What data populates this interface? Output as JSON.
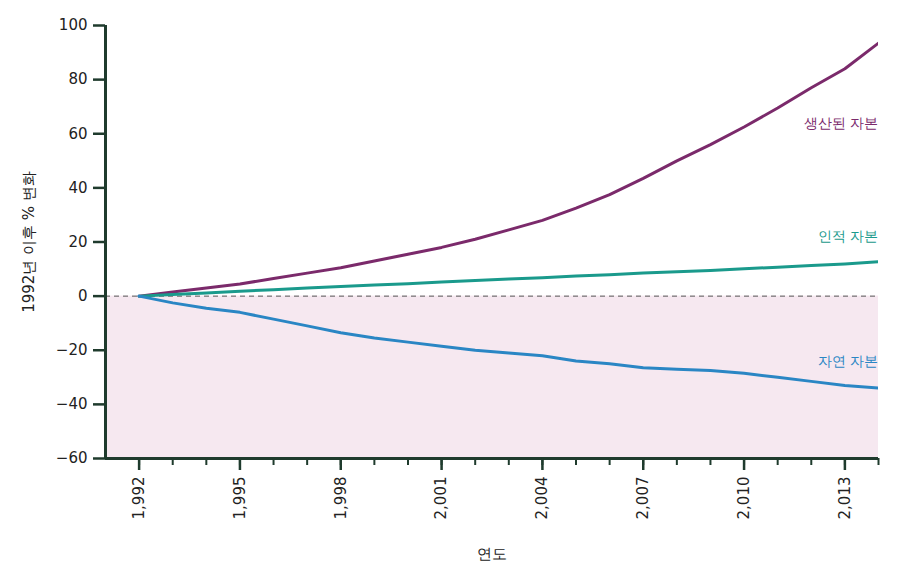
{
  "chart_data": {
    "type": "line",
    "xlabel": "연도",
    "ylabel": "1992년 이후 % 변화",
    "x": [
      1992,
      1993,
      1994,
      1995,
      1996,
      1997,
      1998,
      1999,
      2000,
      2001,
      2002,
      2003,
      2004,
      2005,
      2006,
      2007,
      2008,
      2009,
      2010,
      2011,
      2012,
      2013,
      2014
    ],
    "series": [
      {
        "name": "생산된 자본",
        "color": "#7b2a6b",
        "values": [
          0,
          1.5,
          3,
          4.5,
          6.5,
          8.5,
          10.5,
          13,
          15.5,
          18,
          21,
          24.5,
          28,
          32.5,
          37.5,
          43.5,
          50,
          56,
          62.5,
          69.5,
          77,
          84,
          93.5
        ]
      },
      {
        "name": "인적 자본",
        "color": "#1a9a8c",
        "values": [
          0,
          0.6,
          1.2,
          1.8,
          2.4,
          3,
          3.6,
          4.1,
          4.6,
          5.2,
          5.8,
          6.3,
          6.8,
          7.4,
          7.9,
          8.5,
          9,
          9.5,
          10.1,
          10.7,
          11.3,
          11.9,
          12.7
        ]
      },
      {
        "name": "자연 자본",
        "color": "#2a86c4",
        "values": [
          0,
          -2.5,
          -4.5,
          -6,
          -8.5,
          -11,
          -13.5,
          -15.5,
          -17,
          -18.5,
          -20,
          -21,
          -22,
          -24,
          -25,
          -26.5,
          -27,
          -27.5,
          -28.5,
          -30,
          -31.5,
          -33,
          -34
        ]
      }
    ],
    "xlim": [
      1991,
      2014
    ],
    "ylim": [
      -60,
      100
    ],
    "xticks": [
      1992,
      1995,
      1998,
      2001,
      2004,
      2007,
      2010,
      2013
    ],
    "yticks": [
      -60,
      -40,
      -20,
      0,
      20,
      40,
      60,
      80,
      100
    ],
    "grid": false
  }
}
